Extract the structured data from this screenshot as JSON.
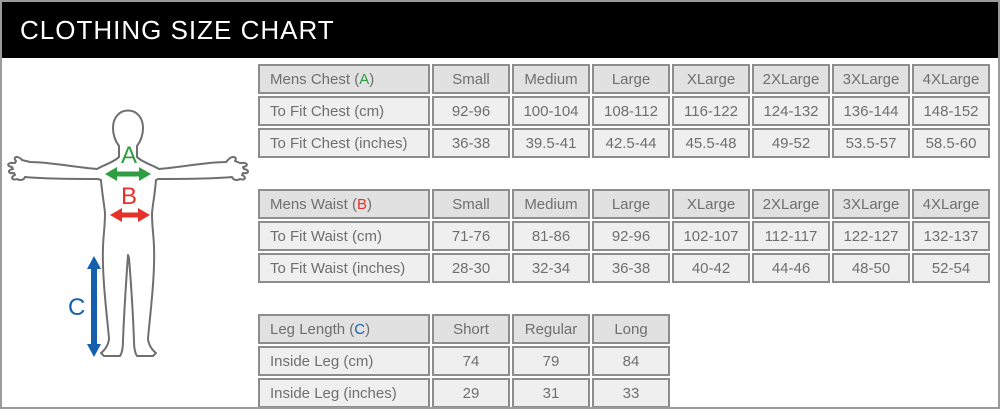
{
  "header": {
    "title": "CLOTHING SIZE CHART"
  },
  "figure": {
    "measure_labels": [
      {
        "text": "A",
        "color": "#2e9e41",
        "measure": "chest"
      },
      {
        "text": "B",
        "color": "#e6312a",
        "measure": "waist"
      },
      {
        "text": "C",
        "color": "#1560ad",
        "measure": "leg-length"
      }
    ],
    "outline_color": "#6f6f6f"
  },
  "tables": [
    {
      "title_prefix": "Mens Chest (",
      "title_letter": "A",
      "title_suffix": ")",
      "letter_color": "#2e9e41",
      "columns": [
        "Small",
        "Medium",
        "Large",
        "XLarge",
        "2XLarge",
        "3XLarge",
        "4XLarge"
      ],
      "rows": [
        {
          "label": "To Fit Chest (cm)",
          "values": [
            "92-96",
            "100-104",
            "108-112",
            "116-122",
            "124-132",
            "136-144",
            "148-152"
          ]
        },
        {
          "label": "To Fit Chest (inches)",
          "values": [
            "36-38",
            "39.5-41",
            "42.5-44",
            "45.5-48",
            "49-52",
            "53.5-57",
            "58.5-60"
          ]
        }
      ]
    },
    {
      "title_prefix": "Mens Waist (",
      "title_letter": "B",
      "title_suffix": ")",
      "letter_color": "#e6312a",
      "columns": [
        "Small",
        "Medium",
        "Large",
        "XLarge",
        "2XLarge",
        "3XLarge",
        "4XLarge"
      ],
      "rows": [
        {
          "label": "To Fit Waist (cm)",
          "values": [
            "71-76",
            "81-86",
            "92-96",
            "102-107",
            "112-117",
            "122-127",
            "132-137"
          ]
        },
        {
          "label": "To Fit Waist (inches)",
          "values": [
            "28-30",
            "32-34",
            "36-38",
            "40-42",
            "44-46",
            "48-50",
            "52-54"
          ]
        }
      ]
    },
    {
      "title_prefix": "Leg Length (",
      "title_letter": "C",
      "title_suffix": ")",
      "letter_color": "#1560ad",
      "columns": [
        "Short",
        "Regular",
        "Long"
      ],
      "rows": [
        {
          "label": "Inside Leg (cm)",
          "values": [
            "74",
            "79",
            "84"
          ]
        },
        {
          "label": "Inside Leg (inches)",
          "values": [
            "29",
            "31",
            "33"
          ]
        }
      ]
    }
  ]
}
